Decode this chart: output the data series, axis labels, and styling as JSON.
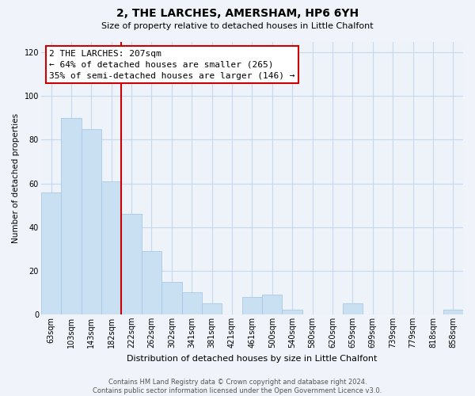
{
  "title": "2, THE LARCHES, AMERSHAM, HP6 6YH",
  "subtitle": "Size of property relative to detached houses in Little Chalfont",
  "xlabel": "Distribution of detached houses by size in Little Chalfont",
  "ylabel": "Number of detached properties",
  "bar_labels": [
    "63sqm",
    "103sqm",
    "143sqm",
    "182sqm",
    "222sqm",
    "262sqm",
    "302sqm",
    "341sqm",
    "381sqm",
    "421sqm",
    "461sqm",
    "500sqm",
    "540sqm",
    "580sqm",
    "620sqm",
    "659sqm",
    "699sqm",
    "739sqm",
    "779sqm",
    "818sqm",
    "858sqm"
  ],
  "bar_values": [
    56,
    90,
    85,
    61,
    46,
    29,
    15,
    10,
    5,
    0,
    8,
    9,
    2,
    0,
    0,
    5,
    0,
    0,
    0,
    0,
    2
  ],
  "bar_color": "#c9dff2",
  "bar_edge_color": "#a8c8e8",
  "vline_color": "#cc0000",
  "vline_x_idx": 3.5,
  "annotation_text": "2 THE LARCHES: 207sqm\n← 64% of detached houses are smaller (265)\n35% of semi-detached houses are larger (146) →",
  "annotation_box_color": "white",
  "annotation_box_edge_color": "#cc0000",
  "ylim": [
    0,
    125
  ],
  "yticks": [
    0,
    20,
    40,
    60,
    80,
    100,
    120
  ],
  "footer_text": "Contains HM Land Registry data © Crown copyright and database right 2024.\nContains public sector information licensed under the Open Government Licence v3.0.",
  "bg_color": "#f0f4fa",
  "plot_bg_color": "#eef3fa",
  "grid_color": "#c8d8ec",
  "title_fontsize": 10,
  "subtitle_fontsize": 8,
  "xlabel_fontsize": 8,
  "ylabel_fontsize": 7.5,
  "tick_fontsize": 7,
  "footer_fontsize": 6,
  "ann_fontsize": 8
}
